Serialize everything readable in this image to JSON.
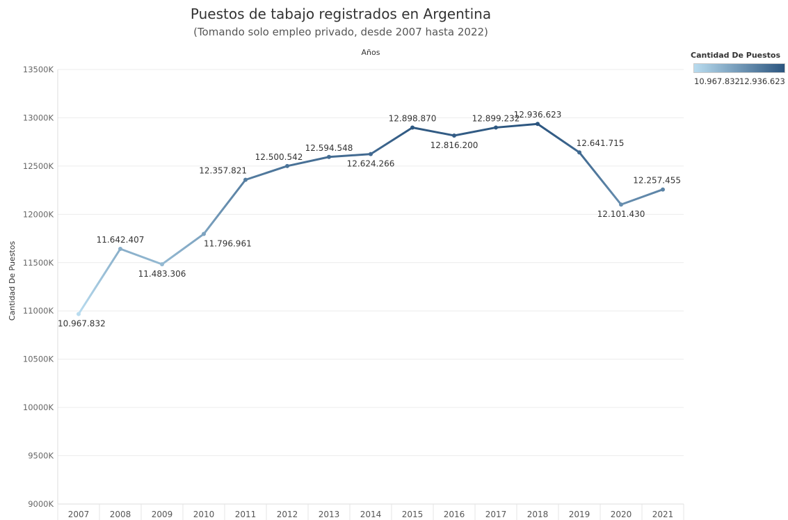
{
  "title": "Puestos de tabajo registrados en Argentina",
  "subtitle": "(Tomando solo empleo privado, desde 2007 hasta 2022)",
  "chart_data": {
    "type": "line",
    "title": "Puestos de tabajo registrados en Argentina",
    "subtitle": "(Tomando solo empleo privado, desde 2007 hasta 2022)",
    "top_axis_label": "Años",
    "xlabel": "",
    "ylabel": "Cantidad De Puestos",
    "ylim": [
      9000000,
      13500000
    ],
    "y_ticks": [
      9000000,
      9500000,
      10000000,
      10500000,
      11000000,
      11500000,
      12000000,
      12500000,
      13000000,
      13500000
    ],
    "y_tick_labels": [
      "9000K",
      "9500K",
      "10000K",
      "10500K",
      "11000K",
      "11500K",
      "12000K",
      "12500K",
      "13000K",
      "13500K"
    ],
    "categories": [
      "2007",
      "2008",
      "2009",
      "2010",
      "2011",
      "2012",
      "2013",
      "2014",
      "2015",
      "2016",
      "2017",
      "2018",
      "2019",
      "2020",
      "2021"
    ],
    "values": [
      10967832,
      11642407,
      11483306,
      11796961,
      12357821,
      12500542,
      12594548,
      12624266,
      12898870,
      12816200,
      12899232,
      12936623,
      12641715,
      12101430,
      12257455
    ],
    "data_labels": [
      "10.967.832",
      "11.642.407",
      "11.483.306",
      "11.796.961",
      "12.357.821",
      "12.500.542",
      "12.594.548",
      "12.624.266",
      "12.898.870",
      "12.816.200",
      "12.899.232",
      "12.936.623",
      "12.641.715",
      "12.101.430",
      "12.257.455"
    ],
    "grid": true,
    "color_scale": {
      "low": "#b9dcef",
      "high": "#2b557f"
    },
    "legend": {
      "title": "Cantidad De Puestos",
      "min_label": "10.967.832",
      "max_label": "12.936.623",
      "placement": "top-right"
    }
  }
}
